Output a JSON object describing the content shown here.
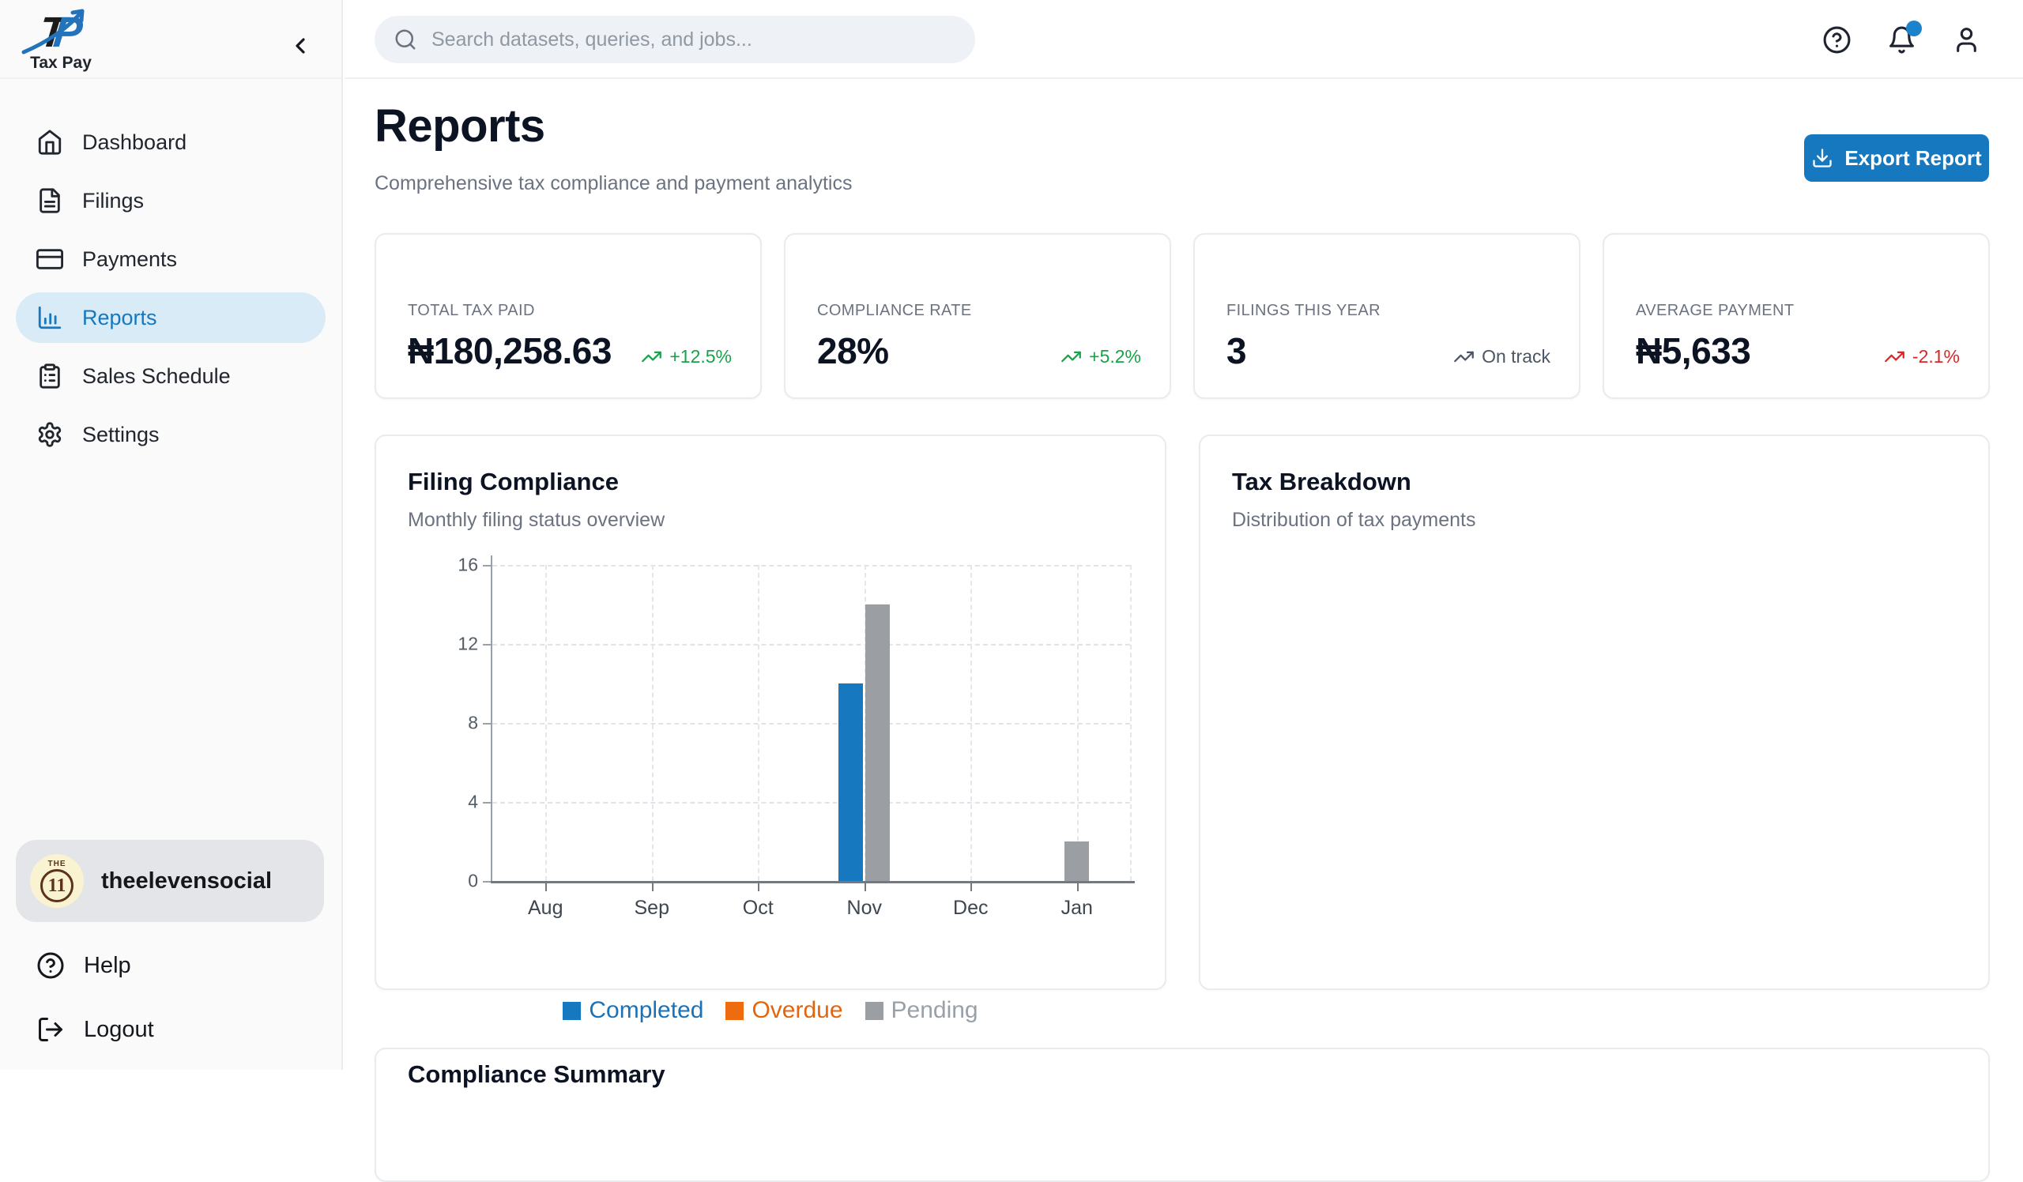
{
  "colors": {
    "accent": "#1678bf",
    "green": "#16a34a",
    "red": "#dc2626",
    "gray_text": "#4b5563"
  },
  "brand": {
    "logo_t": "T",
    "logo_p": "P",
    "name": "Tax Pay"
  },
  "topbar": {
    "search_placeholder": "Search datasets, queries, and jobs...",
    "notification_dot": true
  },
  "sidebar": {
    "items": [
      {
        "label": "Dashboard",
        "icon": "home-icon",
        "active": false
      },
      {
        "label": "Filings",
        "icon": "file-text-icon",
        "active": false
      },
      {
        "label": "Payments",
        "icon": "credit-card-icon",
        "active": false
      },
      {
        "label": "Reports",
        "icon": "bar-chart-icon",
        "active": true
      },
      {
        "label": "Sales Schedule",
        "icon": "clipboard-list-icon",
        "active": false
      },
      {
        "label": "Settings",
        "icon": "gear-icon",
        "active": false
      }
    ],
    "user": {
      "name": "theelevensocial",
      "avatar_line1": "THE",
      "avatar_line2": "11"
    },
    "footer": [
      {
        "label": "Help",
        "icon": "help-circle-icon"
      },
      {
        "label": "Logout",
        "icon": "logout-icon"
      }
    ]
  },
  "page": {
    "title": "Reports",
    "subtitle": "Comprehensive tax compliance and payment analytics",
    "export_label": "Export Report"
  },
  "stats": [
    {
      "label": "TOTAL TAX PAID",
      "value": "₦180,258.63",
      "trend": "+12.5%",
      "trend_color": "green"
    },
    {
      "label": "COMPLIANCE RATE",
      "value": "28%",
      "trend": "+5.2%",
      "trend_color": "green"
    },
    {
      "label": "FILINGS THIS YEAR",
      "value": "3",
      "trend": "On track",
      "trend_color": "gray_text"
    },
    {
      "label": "AVERAGE PAYMENT",
      "value": "₦5,633",
      "trend": "-2.1%",
      "trend_color": "red"
    }
  ],
  "filing_compliance": {
    "title": "Filing Compliance",
    "subtitle": "Monthly filing status overview"
  },
  "tax_breakdown": {
    "title": "Tax Breakdown",
    "subtitle": "Distribution of tax payments"
  },
  "compliance_summary": {
    "title": "Compliance Summary"
  },
  "chart_data": {
    "type": "bar",
    "title": "Filing Compliance",
    "xlabel": "",
    "ylabel": "",
    "categories": [
      "Aug",
      "Sep",
      "Oct",
      "Nov",
      "Dec",
      "Jan"
    ],
    "series": [
      {
        "name": "Completed",
        "color": "#1678bf",
        "label_color": "#1a72b8",
        "values": [
          0,
          0,
          0,
          10,
          0,
          0
        ]
      },
      {
        "name": "Overdue",
        "color": "#ef6c0e",
        "label_color": "#e4650e",
        "values": [
          0,
          0,
          0,
          0,
          0,
          0
        ]
      },
      {
        "name": "Pending",
        "color": "#9b9ea3",
        "label_color": "#9aa0a8",
        "values": [
          0,
          0,
          0,
          14,
          0,
          2
        ]
      }
    ],
    "ylim": [
      0,
      16
    ],
    "yticks": [
      0,
      4,
      8,
      12,
      16
    ],
    "grid": "dashed",
    "legend_position": "bottom"
  }
}
